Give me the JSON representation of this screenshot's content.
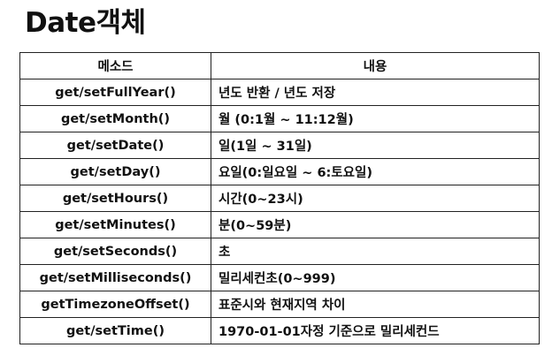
{
  "title": "Date객체",
  "table": {
    "headers": [
      "메소드",
      "내용"
    ],
    "rows": [
      [
        "get/setFullYear()",
        "년도 반환 / 년도 저장"
      ],
      [
        "get/setMonth()",
        "월 (0:1월 ~ 11:12월)"
      ],
      [
        "get/setDate()",
        "일(1일 ~ 31일)"
      ],
      [
        "get/setDay()",
        "요일(0:일요일 ~ 6:토요일)"
      ],
      [
        "get/setHours()",
        "시간(0~23시)"
      ],
      [
        "get/setMinutes()",
        "분(0~59분)"
      ],
      [
        "get/setSeconds()",
        "초"
      ],
      [
        "get/setMilliseconds()",
        "밀리세컨초(0~999)"
      ],
      [
        "getTimezoneOffset()",
        "표준시와 현재지역 차이"
      ],
      [
        "get/setTime()",
        "1970-01-01자정 기준으로 밀리세컨드"
      ]
    ]
  }
}
